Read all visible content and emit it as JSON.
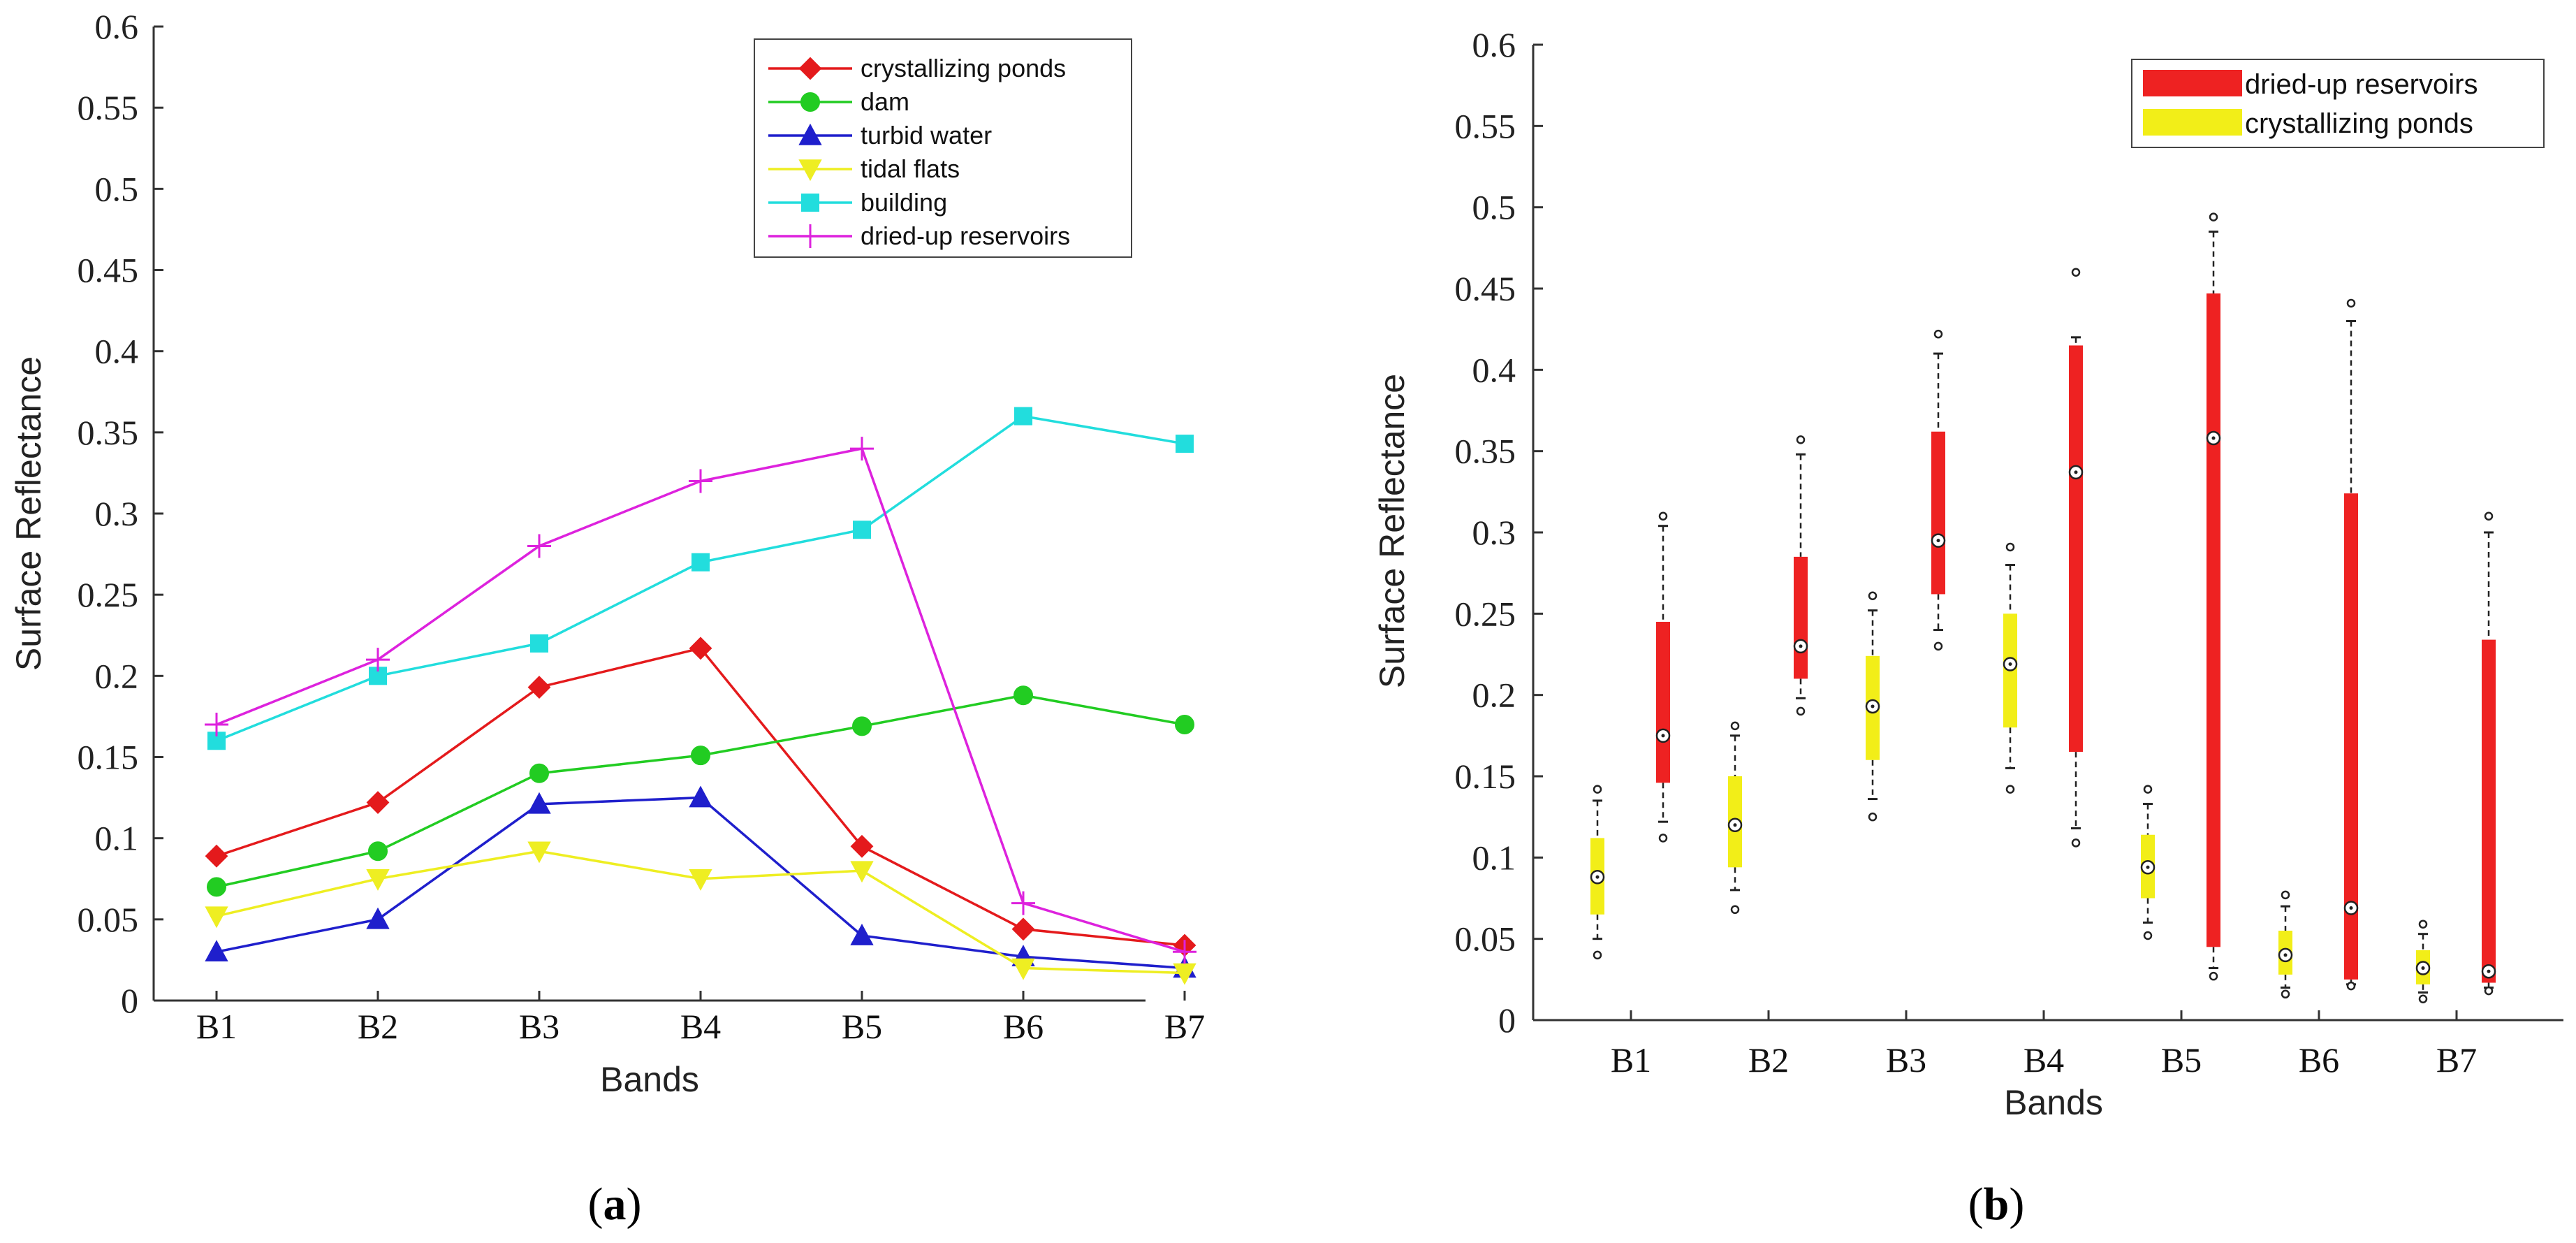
{
  "chart_data": [
    {
      "type": "line",
      "title": "",
      "caption_letter": "a",
      "xlabel": "Bands",
      "ylabel": "Surface Reflectance",
      "categories": [
        "B1",
        "B2",
        "B3",
        "B4",
        "B5",
        "B6",
        "B7"
      ],
      "ylim": [
        0,
        0.6
      ],
      "yticks": [
        0,
        0.05,
        0.1,
        0.15,
        0.2,
        0.25,
        0.3,
        0.35,
        0.4,
        0.45,
        0.5,
        0.55,
        0.6
      ],
      "ytick_labels": [
        "0",
        "0.05",
        "0.1",
        "0.15",
        "0.2",
        "0.25",
        "0.3",
        "0.35",
        "0.4",
        "0.45",
        "0.5",
        "0.55",
        "0.6"
      ],
      "legend_position": "top-right",
      "series": [
        {
          "name": "crystallizing ponds",
          "color": "#e41a1c",
          "marker": "diamond",
          "values": [
            0.089,
            0.122,
            0.193,
            0.217,
            0.095,
            0.044,
            0.034
          ]
        },
        {
          "name": "dam",
          "color": "#22cc22",
          "marker": "circle",
          "values": [
            0.07,
            0.092,
            0.14,
            0.151,
            0.169,
            0.188,
            0.17
          ]
        },
        {
          "name": "turbid water",
          "color": "#1f1fcc",
          "marker": "triangle-up",
          "values": [
            0.03,
            0.05,
            0.121,
            0.125,
            0.04,
            0.027,
            0.02
          ]
        },
        {
          "name": "tidal flats",
          "color": "#eeee22",
          "marker": "triangle-down",
          "values": [
            0.052,
            0.075,
            0.092,
            0.075,
            0.08,
            0.02,
            0.017
          ]
        },
        {
          "name": "building",
          "color": "#22dddd",
          "marker": "square",
          "values": [
            0.16,
            0.2,
            0.22,
            0.27,
            0.29,
            0.36,
            0.343
          ]
        },
        {
          "name": "dried-up reservoirs",
          "color": "#dd22dd",
          "marker": "plus",
          "values": [
            0.17,
            0.21,
            0.28,
            0.32,
            0.34,
            0.06,
            0.03
          ]
        }
      ]
    },
    {
      "type": "box",
      "title": "",
      "caption_letter": "b",
      "xlabel": "Bands",
      "ylabel": "Surface Reflectance",
      "categories": [
        "B1",
        "B2",
        "B3",
        "B4",
        "B5",
        "B6",
        "B7"
      ],
      "ylim": [
        0,
        0.6
      ],
      "yticks": [
        0,
        0.05,
        0.1,
        0.15,
        0.2,
        0.25,
        0.3,
        0.35,
        0.4,
        0.45,
        0.5,
        0.55,
        0.6
      ],
      "ytick_labels": [
        "0",
        "0.05",
        "0.1",
        "0.15",
        "0.2",
        "0.25",
        "0.3",
        "0.35",
        "0.4",
        "0.45",
        "0.5",
        "0.55",
        "0.6"
      ],
      "legend_position": "top-right",
      "series": [
        {
          "name": "dried-up reservoirs",
          "color": "#ee2222",
          "boxes": [
            {
              "band": "B1",
              "whisker_low": 0.122,
              "q1": 0.146,
              "median": 0.175,
              "q3": 0.245,
              "whisker_high": 0.304,
              "outlier_low": 0.112,
              "outlier_high": 0.31
            },
            {
              "band": "B2",
              "whisker_low": 0.198,
              "q1": 0.21,
              "median": 0.23,
              "q3": 0.285,
              "whisker_high": 0.348,
              "outlier_low": 0.19,
              "outlier_high": 0.357
            },
            {
              "band": "B3",
              "whisker_low": 0.24,
              "q1": 0.262,
              "median": 0.295,
              "q3": 0.362,
              "whisker_high": 0.41,
              "outlier_low": 0.23,
              "outlier_high": 0.422
            },
            {
              "band": "B4",
              "whisker_low": 0.118,
              "q1": 0.165,
              "median": 0.337,
              "q3": 0.415,
              "whisker_high": 0.42,
              "outlier_low": 0.109,
              "outlier_high": 0.46
            },
            {
              "band": "B5",
              "whisker_low": 0.032,
              "q1": 0.045,
              "median": 0.358,
              "q3": 0.447,
              "whisker_high": 0.485,
              "outlier_low": 0.027,
              "outlier_high": 0.494
            },
            {
              "band": "B6",
              "whisker_low": 0.022,
              "q1": 0.025,
              "median": 0.069,
              "q3": 0.324,
              "whisker_high": 0.43,
              "outlier_low": 0.021,
              "outlier_high": 0.441
            },
            {
              "band": "B7",
              "whisker_low": 0.02,
              "q1": 0.023,
              "median": 0.03,
              "q3": 0.234,
              "whisker_high": 0.3,
              "outlier_low": 0.018,
              "outlier_high": 0.31
            }
          ]
        },
        {
          "name": "crystallizing ponds",
          "color": "#f2ee18",
          "boxes": [
            {
              "band": "B1",
              "whisker_low": 0.05,
              "q1": 0.065,
              "median": 0.088,
              "q3": 0.112,
              "whisker_high": 0.135,
              "outlier_low": 0.04,
              "outlier_high": 0.142
            },
            {
              "band": "B2",
              "whisker_low": 0.08,
              "q1": 0.094,
              "median": 0.12,
              "q3": 0.15,
              "whisker_high": 0.175,
              "outlier_low": 0.068,
              "outlier_high": 0.181
            },
            {
              "band": "B3",
              "whisker_low": 0.136,
              "q1": 0.16,
              "median": 0.193,
              "q3": 0.224,
              "whisker_high": 0.252,
              "outlier_low": 0.125,
              "outlier_high": 0.261
            },
            {
              "band": "B4",
              "whisker_low": 0.155,
              "q1": 0.18,
              "median": 0.219,
              "q3": 0.25,
              "whisker_high": 0.28,
              "outlier_low": 0.142,
              "outlier_high": 0.291
            },
            {
              "band": "B5",
              "whisker_low": 0.06,
              "q1": 0.075,
              "median": 0.094,
              "q3": 0.114,
              "whisker_high": 0.133,
              "outlier_low": 0.052,
              "outlier_high": 0.142
            },
            {
              "band": "B6",
              "whisker_low": 0.02,
              "q1": 0.028,
              "median": 0.04,
              "q3": 0.055,
              "whisker_high": 0.07,
              "outlier_low": 0.016,
              "outlier_high": 0.077
            },
            {
              "band": "B7",
              "whisker_low": 0.017,
              "q1": 0.022,
              "median": 0.032,
              "q3": 0.043,
              "whisker_high": 0.053,
              "outlier_low": 0.013,
              "outlier_high": 0.059
            }
          ]
        }
      ]
    }
  ]
}
